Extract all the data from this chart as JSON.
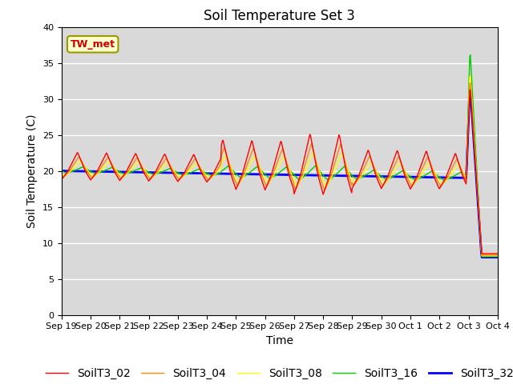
{
  "title": "Soil Temperature Set 3",
  "xlabel": "Time",
  "ylabel": "Soil Temperature (C)",
  "ylim": [
    0,
    40
  ],
  "series_labels": [
    "SoilT3_02",
    "SoilT3_04",
    "SoilT3_08",
    "SoilT3_16",
    "SoilT3_32"
  ],
  "series_colors": [
    "#ff0000",
    "#ff8800",
    "#ffff00",
    "#00cc00",
    "#0000ff"
  ],
  "annotation_text": "TW_met",
  "bg_color": "#d9d9d9",
  "fig_color": "#ffffff",
  "title_fontsize": 12,
  "axis_fontsize": 10,
  "legend_fontsize": 10,
  "tick_fontsize": 8,
  "line_widths": [
    1.0,
    1.0,
    1.0,
    1.0,
    2.0
  ],
  "grid_color": "#ffffff",
  "xtick_labels": [
    "Sep 19",
    "Sep 20",
    "Sep 21",
    "Sep 22",
    "Sep 23",
    "Sep 24",
    "Sep 25",
    "Sep 26",
    "Sep 27",
    "Sep 28",
    "Sep 29",
    "Sep 30",
    "Oct 1",
    "Oct 2",
    "Oct 3",
    "Oct 4"
  ]
}
